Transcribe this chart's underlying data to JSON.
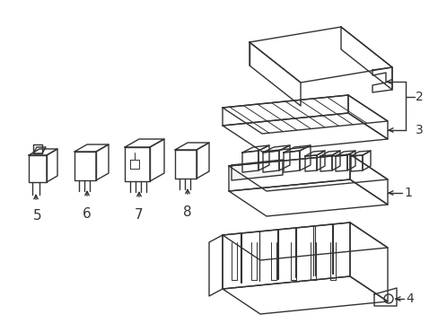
{
  "background_color": "#ffffff",
  "line_color": "#333333",
  "line_width": 1.0,
  "label_fontsize": 10,
  "fig_width": 4.89,
  "fig_height": 3.6,
  "dpi": 100
}
